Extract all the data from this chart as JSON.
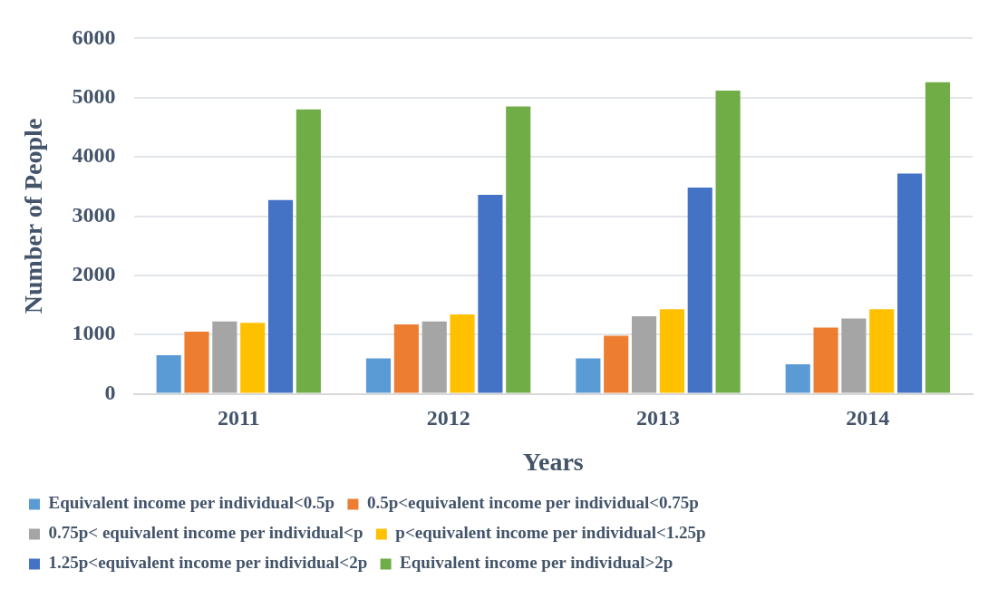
{
  "chart_data": {
    "type": "bar",
    "xlabel": "Years",
    "ylabel": "Number of People",
    "categories": [
      "2011",
      "2012",
      "2013",
      "2014"
    ],
    "series": [
      {
        "name": "Equivalent income per individual<0.5p",
        "color": "#5b9bd5",
        "values": [
          650,
          600,
          600,
          500
        ]
      },
      {
        "name": "0.5p<equivalent income per individual<0.75p",
        "color": "#ed7d31",
        "values": [
          1050,
          1170,
          980,
          1120
        ]
      },
      {
        "name": "0.75p< equivalent income per individual<p",
        "color": "#a5a5a5",
        "values": [
          1220,
          1220,
          1310,
          1270
        ]
      },
      {
        "name": "p<equivalent income per individual<1.25p",
        "color": "#ffc000",
        "values": [
          1200,
          1340,
          1430,
          1430
        ]
      },
      {
        "name": "1.25p<equivalent income per individual<2p",
        "color": "#4472c4",
        "values": [
          3270,
          3360,
          3480,
          3720
        ]
      },
      {
        "name": "Equivalent income per individual>2p",
        "color": "#70ad47",
        "values": [
          4800,
          4850,
          5120,
          5260
        ]
      }
    ],
    "ylim": [
      0,
      6000
    ],
    "yticks": [
      0,
      1000,
      2000,
      3000,
      4000,
      5000,
      6000
    ],
    "grid": "y",
    "legend": "bottom"
  }
}
